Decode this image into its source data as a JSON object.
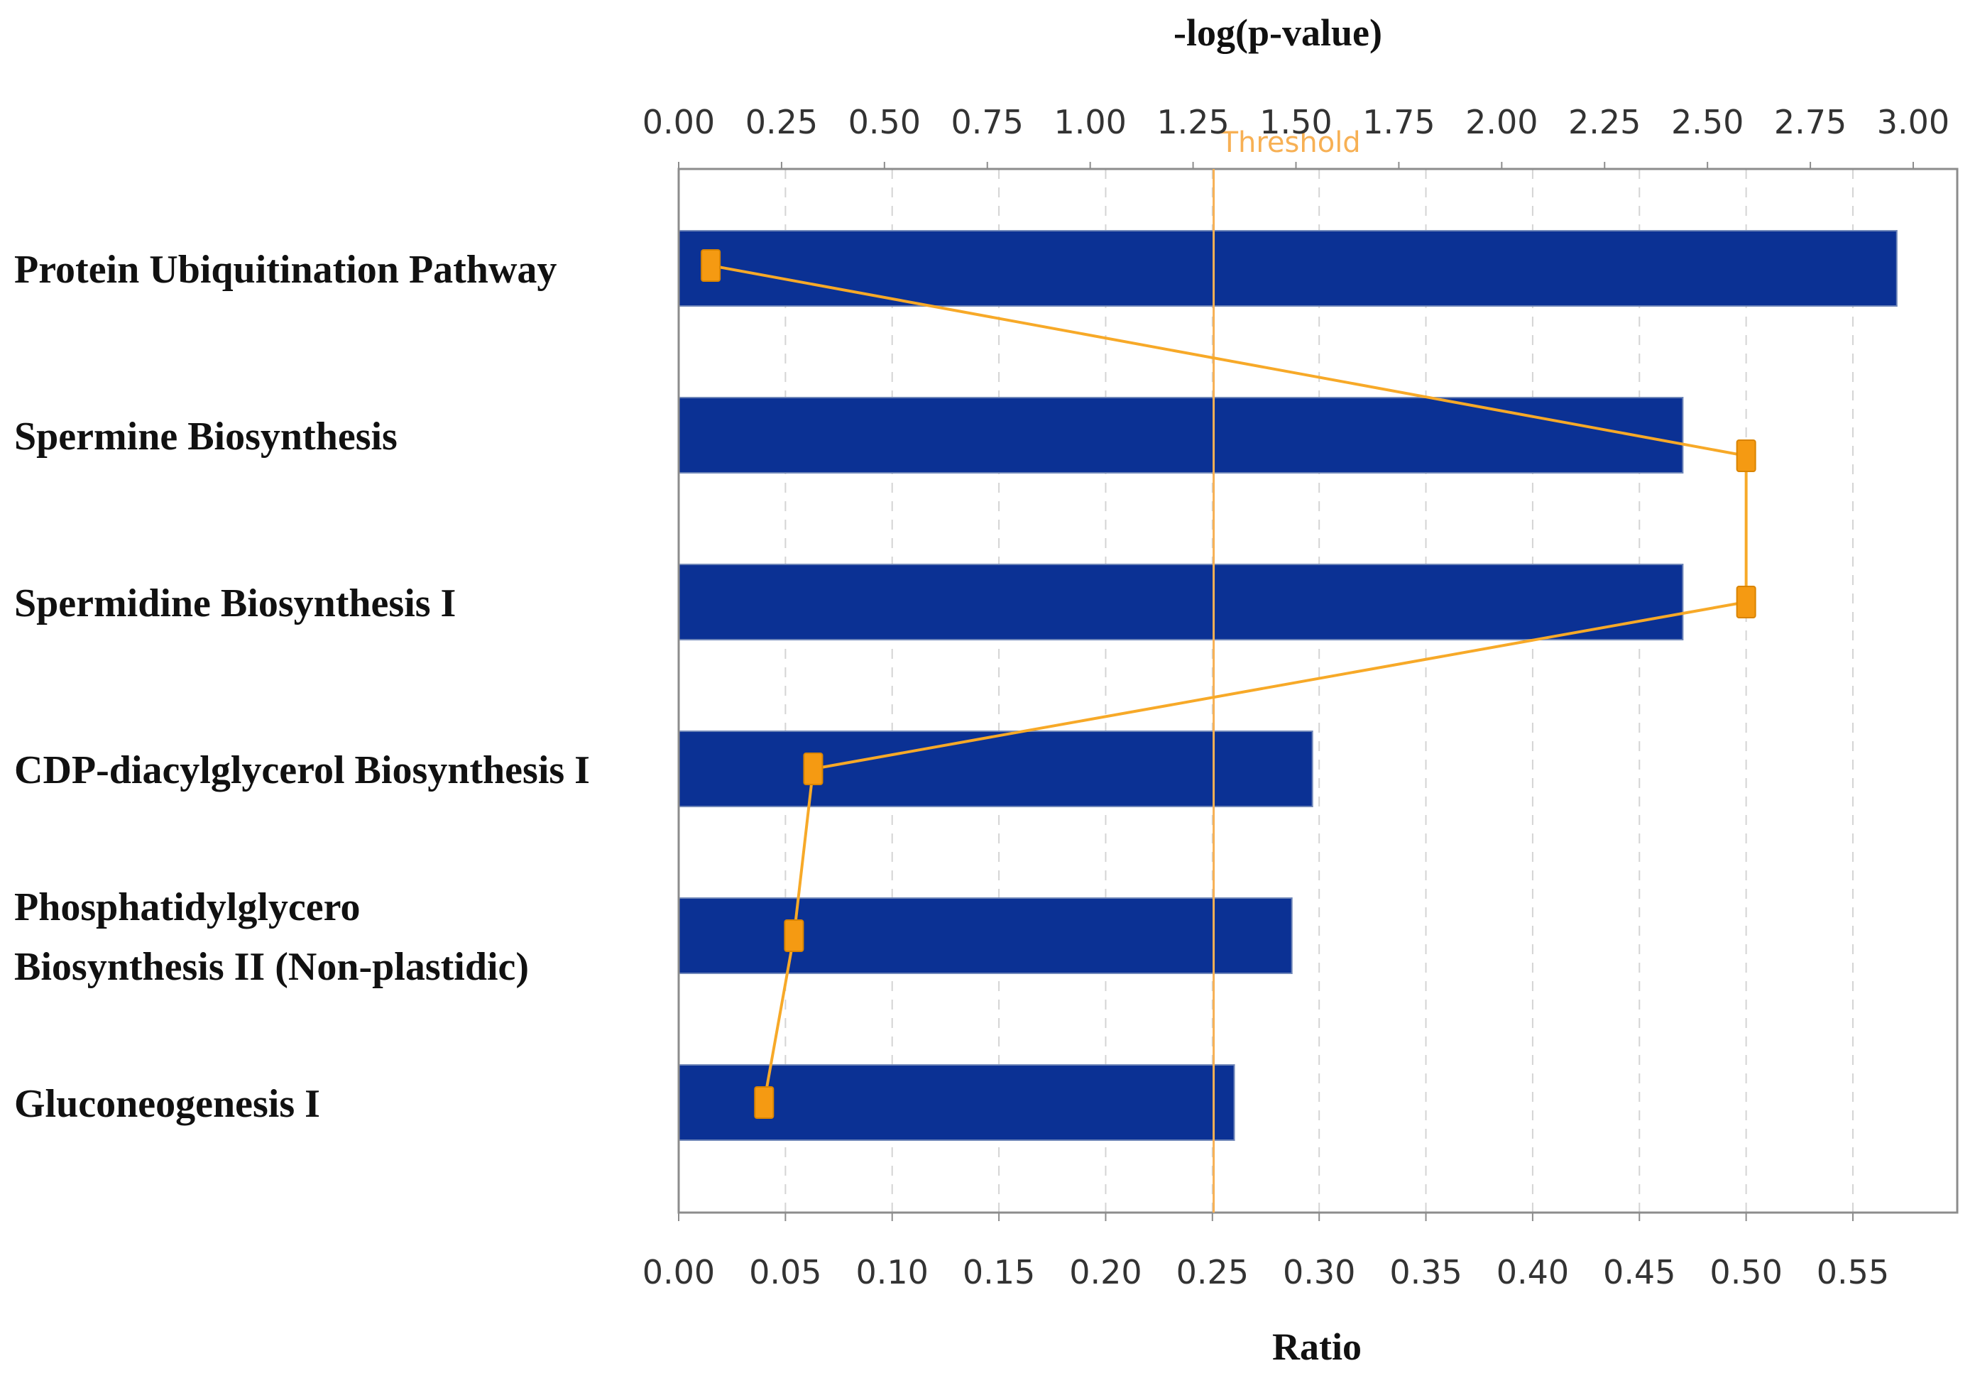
{
  "colors": {
    "bar": "#0B3194",
    "line": "#F7A928",
    "marker": "#F59A12",
    "threshold": "#F7B054",
    "grid": "#D4D4D4",
    "axis": "#8C8C8C"
  },
  "chart_data": {
    "type": "bar",
    "orientation": "horizontal",
    "categories": [
      [
        "Protein Ubiquitination Pathway"
      ],
      [
        "Spermine Biosynthesis"
      ],
      [
        "Spermidine Biosynthesis I"
      ],
      [
        "CDP-diacylglycerol Biosynthesis I"
      ],
      [
        "Phosphatidylglycero",
        "Biosynthesis II (Non-plastidic)"
      ],
      [
        "Gluconeogenesis I"
      ]
    ],
    "series": [
      {
        "name": "-log(p-value)",
        "type": "bar",
        "axis": "top",
        "values": [
          2.96,
          2.44,
          2.44,
          1.54,
          1.49,
          1.35
        ]
      },
      {
        "name": "Ratio",
        "type": "line",
        "axis": "bottom",
        "values": [
          0.015,
          0.5,
          0.5,
          0.063,
          0.054,
          0.04
        ]
      }
    ],
    "top_axis": {
      "title": "-log(p-value)",
      "range": [
        0,
        3.12
      ],
      "ticks": [
        "0.00",
        "0.25",
        "0.50",
        "0.75",
        "1.00",
        "1.25",
        "1.50",
        "1.75",
        "2.00",
        "2.25",
        "2.50",
        "2.75",
        "3.00"
      ]
    },
    "bottom_axis": {
      "title": "Ratio",
      "range": [
        0,
        0.6
      ],
      "ticks": [
        "0.00",
        "0.05",
        "0.10",
        "0.15",
        "0.20",
        "0.25",
        "0.30",
        "0.35",
        "0.40",
        "0.45",
        "0.50",
        "0.55"
      ]
    },
    "threshold": {
      "label": "Threshold",
      "value": 1.3
    },
    "grid": true
  }
}
